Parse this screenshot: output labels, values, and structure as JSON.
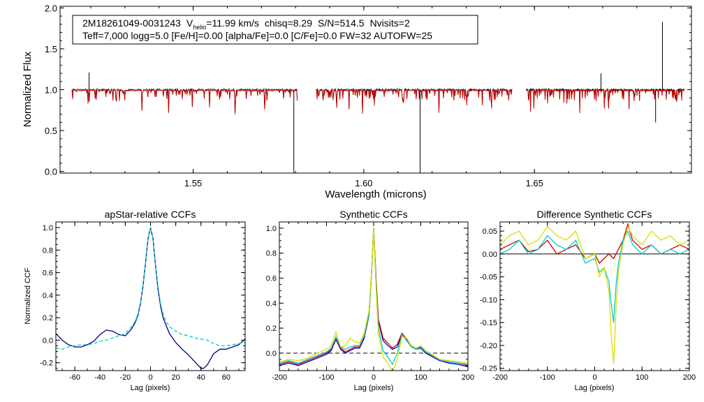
{
  "chart_data": [
    {
      "type": "line",
      "id": "spectrum",
      "xlabel": "Wavelength (microns)",
      "ylabel": "Normalized Flux",
      "xlim": [
        1.511,
        1.696
      ],
      "ylim": [
        -0.02,
        2.02
      ],
      "xticks": [
        1.55,
        1.6,
        1.65
      ],
      "xtick_labels": [
        "1.55",
        "1.60",
        "1.65"
      ],
      "yticks": [
        0.0,
        0.5,
        1.0,
        1.5,
        2.0
      ],
      "ytick_labels": [
        "0.0",
        "0.5",
        "1.0",
        "1.5",
        "2.0"
      ],
      "annotation": {
        "star_id": "2M18261049-0031243",
        "v_prefix": "V",
        "v_sub": "helio",
        "v_value": "=11.99 km/s",
        "chisq": "chisq=8.29",
        "snr": "S/N=514.5",
        "nvisits": "Nvisits=2",
        "line2": "Teff=7,000 logg=5.0 [Fe/H]=0.00 [alpha/Fe]=0.0 [C/Fe]=0.0 FW=32 AUTOFW=25"
      },
      "chips": [
        [
          1.5145,
          1.5805
        ],
        [
          1.586,
          1.6435
        ],
        [
          1.6475,
          1.694
        ]
      ],
      "series": [
        {
          "name": "observed",
          "color": "#000000"
        },
        {
          "name": "model",
          "color": "#cc0000"
        }
      ],
      "features": [
        {
          "x": 1.5195,
          "y": 1.21
        },
        {
          "x": 1.5795,
          "y": -0.02
        },
        {
          "x": 1.6165,
          "y": -0.02
        },
        {
          "x": 1.6695,
          "y": 1.2
        },
        {
          "x": 1.6855,
          "y": 0.6
        },
        {
          "x": 1.6875,
          "y": 1.83
        }
      ]
    },
    {
      "type": "line",
      "id": "apstar_ccf",
      "title": "apStar-relative CCFs",
      "xlabel": "Lag (pixels)",
      "ylabel": "Normalized CCF",
      "xlim": [
        -75,
        75
      ],
      "ylim": [
        -0.27,
        1.05
      ],
      "xticks": [
        -60,
        -40,
        -20,
        0,
        20,
        40,
        60
      ],
      "xtick_labels": [
        "-60",
        "-40",
        "-20",
        "0",
        "20",
        "40",
        "60"
      ],
      "yticks": [
        -0.2,
        0.0,
        0.2,
        0.4,
        0.6,
        0.8,
        1.0
      ],
      "ytick_labels": [
        "-0.2",
        "0.0",
        "0.2",
        "0.4",
        "0.6",
        "0.8",
        "1.0"
      ],
      "series": [
        {
          "name": "ccf_1",
          "color": "#000080",
          "x": [
            -75,
            -70,
            -65,
            -60,
            -55,
            -50,
            -45,
            -40,
            -35,
            -30,
            -25,
            -20,
            -15,
            -12,
            -10,
            -8,
            -6,
            -4,
            -2,
            0,
            2,
            4,
            6,
            8,
            10,
            12,
            15,
            20,
            25,
            30,
            35,
            40,
            42,
            45,
            50,
            55,
            60,
            65,
            70,
            75
          ],
          "y": [
            0.06,
            0.0,
            -0.04,
            -0.06,
            -0.06,
            -0.04,
            -0.01,
            0.05,
            0.09,
            0.08,
            0.05,
            0.04,
            0.1,
            0.16,
            0.22,
            0.32,
            0.48,
            0.68,
            0.9,
            1.0,
            0.9,
            0.66,
            0.45,
            0.3,
            0.2,
            0.14,
            0.06,
            -0.02,
            -0.08,
            -0.13,
            -0.19,
            -0.25,
            -0.25,
            -0.22,
            -0.12,
            -0.08,
            -0.08,
            -0.06,
            -0.04,
            0.01
          ]
        },
        {
          "name": "ccf_2",
          "color": "#00cccc",
          "dashed": true,
          "x": [
            -75,
            -70,
            -65,
            -60,
            -55,
            -50,
            -45,
            -40,
            -35,
            -30,
            -25,
            -20,
            -15,
            -12,
            -10,
            -8,
            -6,
            -4,
            -2,
            0,
            2,
            4,
            6,
            8,
            10,
            12,
            15,
            20,
            25,
            30,
            35,
            40,
            45,
            50,
            55,
            60,
            65,
            70,
            75
          ],
          "y": [
            -0.07,
            -0.08,
            -0.06,
            -0.05,
            -0.04,
            -0.04,
            -0.03,
            -0.01,
            0.0,
            0.02,
            0.04,
            0.06,
            0.12,
            0.17,
            0.23,
            0.33,
            0.49,
            0.68,
            0.9,
            1.0,
            0.9,
            0.67,
            0.47,
            0.32,
            0.23,
            0.17,
            0.12,
            0.08,
            0.05,
            0.04,
            0.02,
            0.01,
            0.0,
            -0.03,
            -0.05,
            -0.05,
            -0.04,
            -0.03,
            -0.02
          ]
        }
      ]
    },
    {
      "type": "line",
      "id": "synthetic_ccf",
      "title": "Synthetic CCFs",
      "xlabel": "Lag (pixels)",
      "xlim": [
        -200,
        200
      ],
      "ylim": [
        -0.14,
        1.05
      ],
      "xticks": [
        -200,
        -100,
        0,
        100,
        200
      ],
      "xtick_labels": [
        "-200",
        "-100",
        "0",
        "100",
        "200"
      ],
      "yticks": [
        0.0,
        0.2,
        0.4,
        0.6,
        0.8,
        1.0
      ],
      "ytick_labels": [
        "0.0",
        "0.2",
        "0.4",
        "0.6",
        "0.8",
        "1.0"
      ],
      "zero_line": 0.0,
      "series": [
        {
          "name": "ccf_blue",
          "color": "#0000cc",
          "x": [
            -200,
            -180,
            -160,
            -140,
            -120,
            -100,
            -90,
            -80,
            -70,
            -60,
            -50,
            -40,
            -30,
            -20,
            -10,
            -5,
            0,
            5,
            10,
            20,
            30,
            40,
            50,
            60,
            70,
            80,
            90,
            100,
            110,
            120,
            140,
            160,
            180,
            200
          ],
          "y": [
            -0.1,
            -0.08,
            -0.1,
            -0.07,
            -0.04,
            -0.01,
            0.02,
            0.11,
            0.03,
            0.0,
            0.02,
            0.04,
            0.04,
            0.12,
            0.3,
            0.6,
            1.0,
            0.58,
            0.25,
            0.1,
            0.06,
            0.03,
            0.05,
            0.15,
            0.1,
            0.05,
            0.03,
            0.04,
            0.0,
            -0.02,
            -0.06,
            -0.08,
            -0.09,
            -0.11
          ]
        },
        {
          "name": "ccf_red",
          "color": "#cc0000",
          "x": [
            -200,
            -180,
            -160,
            -140,
            -120,
            -100,
            -90,
            -80,
            -70,
            -60,
            -50,
            -40,
            -30,
            -20,
            -10,
            -5,
            0,
            5,
            10,
            20,
            30,
            40,
            50,
            60,
            70,
            80,
            90,
            100,
            110,
            120,
            140,
            160,
            180,
            200
          ],
          "y": [
            -0.09,
            -0.07,
            -0.09,
            -0.06,
            -0.03,
            0.0,
            0.03,
            0.12,
            0.04,
            0.01,
            0.03,
            0.05,
            0.05,
            0.13,
            0.31,
            0.61,
            1.0,
            0.6,
            0.27,
            0.12,
            0.08,
            0.04,
            0.07,
            0.16,
            0.11,
            0.06,
            0.04,
            0.05,
            0.01,
            -0.01,
            -0.05,
            -0.07,
            -0.08,
            -0.1
          ]
        },
        {
          "name": "ccf_cyan",
          "color": "#00cccc",
          "x": [
            -200,
            -180,
            -160,
            -140,
            -120,
            -100,
            -90,
            -80,
            -70,
            -60,
            -50,
            -40,
            -30,
            -20,
            -10,
            -5,
            0,
            5,
            10,
            20,
            30,
            40,
            50,
            60,
            70,
            80,
            90,
            100,
            110,
            120,
            140,
            160,
            180,
            200
          ],
          "y": [
            -0.08,
            -0.06,
            -0.08,
            -0.05,
            -0.02,
            0.01,
            0.04,
            0.13,
            0.05,
            0.03,
            0.05,
            0.06,
            0.06,
            0.14,
            0.31,
            0.6,
            1.0,
            0.56,
            0.2,
            0.02,
            -0.03,
            -0.09,
            0.0,
            0.15,
            0.1,
            0.05,
            0.03,
            0.05,
            0.01,
            -0.01,
            -0.05,
            -0.07,
            -0.08,
            -0.09
          ]
        },
        {
          "name": "ccf_yellow",
          "color": "#dddd00",
          "x": [
            -200,
            -180,
            -160,
            -140,
            -120,
            -100,
            -90,
            -80,
            -70,
            -60,
            -50,
            -40,
            -30,
            -20,
            -10,
            -5,
            0,
            5,
            10,
            20,
            30,
            40,
            50,
            60,
            70,
            80,
            90,
            100,
            110,
            120,
            140,
            160,
            180,
            200
          ],
          "y": [
            -0.07,
            -0.05,
            -0.06,
            -0.04,
            0.0,
            0.03,
            0.06,
            0.17,
            0.05,
            0.06,
            0.12,
            0.09,
            0.08,
            0.16,
            0.34,
            0.63,
            1.0,
            0.52,
            0.15,
            -0.03,
            -0.08,
            -0.15,
            -0.05,
            0.13,
            0.12,
            0.06,
            0.04,
            0.06,
            0.02,
            0.0,
            -0.05,
            -0.06,
            -0.07,
            -0.08
          ]
        }
      ]
    },
    {
      "type": "line",
      "id": "difference_ccf",
      "title": "Difference Synthetic CCFs",
      "xlabel": "Lag (pixels)",
      "xlim": [
        -200,
        200
      ],
      "ylim": [
        -0.255,
        0.07
      ],
      "xticks": [
        -200,
        -100,
        0,
        100,
        200
      ],
      "xtick_labels": [
        "-200",
        "-100",
        "0",
        "100",
        "200"
      ],
      "yticks": [
        -0.25,
        -0.2,
        -0.15,
        -0.1,
        -0.05,
        0.0,
        0.05
      ],
      "ytick_labels": [
        "-0.25",
        "-0.20",
        "-0.15",
        "-0.10",
        "-0.05",
        "0.00",
        "0.05"
      ],
      "zero_line": 0.0,
      "series": [
        {
          "name": "diff_red",
          "color": "#cc0000",
          "x": [
            -200,
            -180,
            -160,
            -140,
            -120,
            -100,
            -80,
            -60,
            -40,
            -20,
            0,
            10,
            20,
            30,
            40,
            50,
            60,
            70,
            80,
            90,
            100,
            120,
            140,
            160,
            180,
            200
          ],
          "y": [
            0.01,
            0.02,
            0.03,
            0.005,
            0.01,
            0.03,
            0.0,
            0.01,
            0.02,
            -0.01,
            0.0,
            -0.02,
            -0.01,
            0.0,
            -0.01,
            0.01,
            0.03,
            0.065,
            0.03,
            0.02,
            0.01,
            0.02,
            0.0,
            0.01,
            0.02,
            0.01
          ]
        },
        {
          "name": "diff_cyan",
          "color": "#00cccc",
          "x": [
            -200,
            -180,
            -160,
            -140,
            -120,
            -100,
            -80,
            -60,
            -40,
            -20,
            0,
            10,
            20,
            30,
            35,
            40,
            45,
            50,
            60,
            70,
            80,
            90,
            100,
            120,
            140,
            160,
            180,
            200
          ],
          "y": [
            0.0,
            0.01,
            0.03,
            0.0,
            0.01,
            0.04,
            0.02,
            0.01,
            0.03,
            -0.02,
            -0.01,
            -0.04,
            -0.03,
            -0.06,
            -0.11,
            -0.15,
            -0.07,
            -0.02,
            0.03,
            0.05,
            0.02,
            0.01,
            0.0,
            0.02,
            0.0,
            0.01,
            0.0,
            0.01
          ]
        },
        {
          "name": "diff_yellow",
          "color": "#dddd00",
          "x": [
            -200,
            -180,
            -160,
            -140,
            -120,
            -100,
            -80,
            -60,
            -40,
            -20,
            0,
            10,
            20,
            30,
            35,
            40,
            45,
            50,
            60,
            70,
            80,
            90,
            100,
            120,
            140,
            160,
            180,
            200
          ],
          "y": [
            0.02,
            0.04,
            0.05,
            0.02,
            0.03,
            0.06,
            0.04,
            0.03,
            0.05,
            -0.01,
            0.0,
            -0.05,
            -0.03,
            -0.08,
            -0.18,
            -0.24,
            -0.12,
            -0.04,
            0.02,
            0.06,
            0.04,
            0.03,
            0.02,
            0.05,
            0.03,
            0.04,
            0.02,
            0.03
          ]
        }
      ]
    }
  ]
}
